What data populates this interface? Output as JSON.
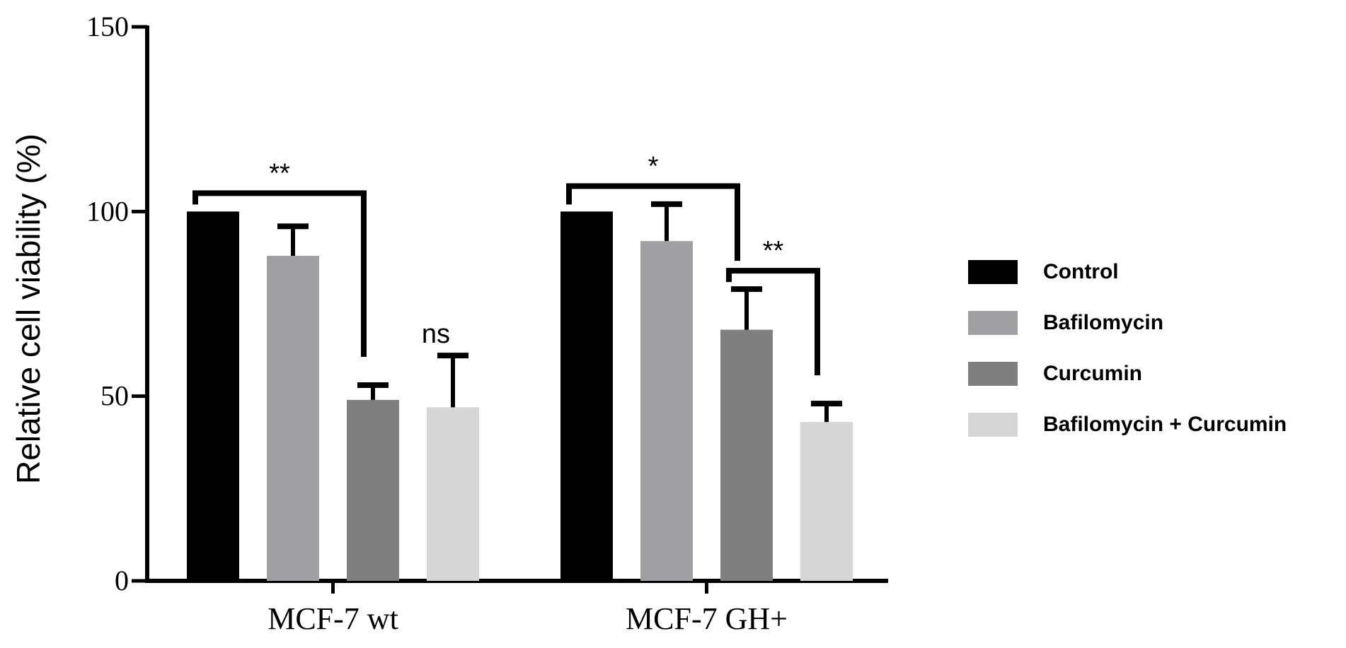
{
  "chart_data": {
    "type": "bar",
    "title": "",
    "xlabel": "",
    "ylabel": "Relative cell viability (%)",
    "ylim": [
      0,
      150
    ],
    "yticks": [
      0,
      50,
      100,
      150
    ],
    "grid": false,
    "legend_position": "right",
    "categories": [
      "MCF-7 wt",
      "MCF-7 GH+"
    ],
    "series": [
      {
        "name": "Control",
        "color": "#000000",
        "values": [
          100,
          100
        ],
        "errors": [
          0,
          0
        ]
      },
      {
        "name": "Bafilomycin",
        "color": "#a0a0a3",
        "values": [
          88,
          92
        ],
        "errors": [
          8,
          10
        ]
      },
      {
        "name": "Curcumin",
        "color": "#7f7f7f",
        "values": [
          49,
          68
        ],
        "errors": [
          4,
          11
        ]
      },
      {
        "name": "Bafilomycin + Curcumin",
        "color": "#d6d6d6",
        "values": [
          47,
          43
        ],
        "errors": [
          14,
          5
        ]
      }
    ],
    "annotations": [
      {
        "text": "**",
        "group": 0,
        "from_series": 0,
        "to_series": 2
      },
      {
        "text": "ns",
        "group": 0,
        "series": 3
      },
      {
        "text": "*",
        "group": 1,
        "from_series": 0,
        "to_series": 2
      },
      {
        "text": "**",
        "group": 1,
        "from_series": 2,
        "to_series": 3
      }
    ]
  }
}
